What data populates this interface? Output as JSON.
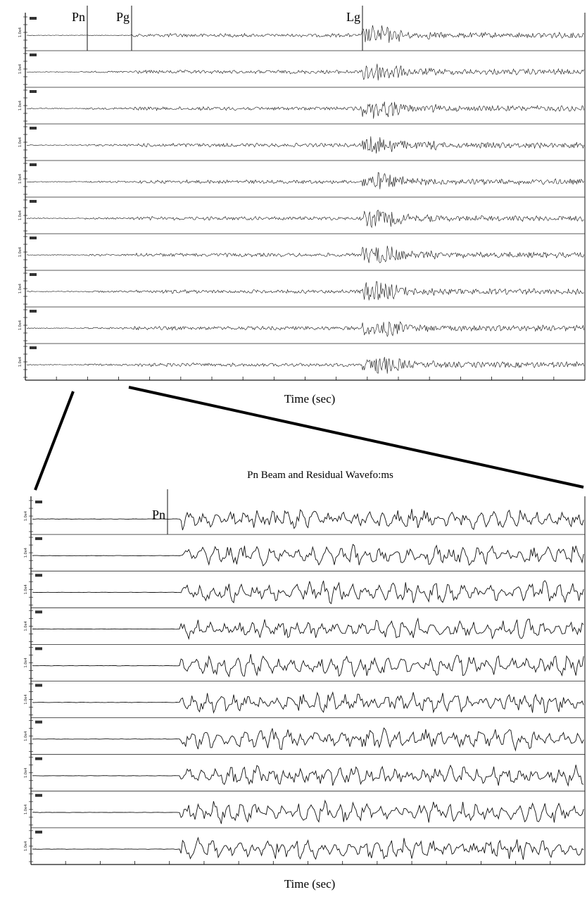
{
  "chart_data": [
    {
      "type": "line",
      "panel": "top",
      "xlabel": "Time (sec)",
      "xlim": [
        0,
        180
      ],
      "phase_labels": [
        {
          "label": "Pn",
          "time": 20
        },
        {
          "label": "Pg",
          "time": 35
        },
        {
          "label": "Lg",
          "time": 108
        }
      ],
      "trace_count": 10,
      "x_tick_count": 19,
      "y_tick_label": "1.0e4"
    },
    {
      "type": "line",
      "panel": "bottom",
      "title": "Pn Beam and Residual Wavefo:ms",
      "xlabel": "Time (sec)",
      "phase_labels": [
        {
          "label": "Pn",
          "time": 0
        }
      ],
      "trace_count": 10,
      "x_tick_count": 17,
      "y_tick_label": "1.0e4"
    }
  ]
}
